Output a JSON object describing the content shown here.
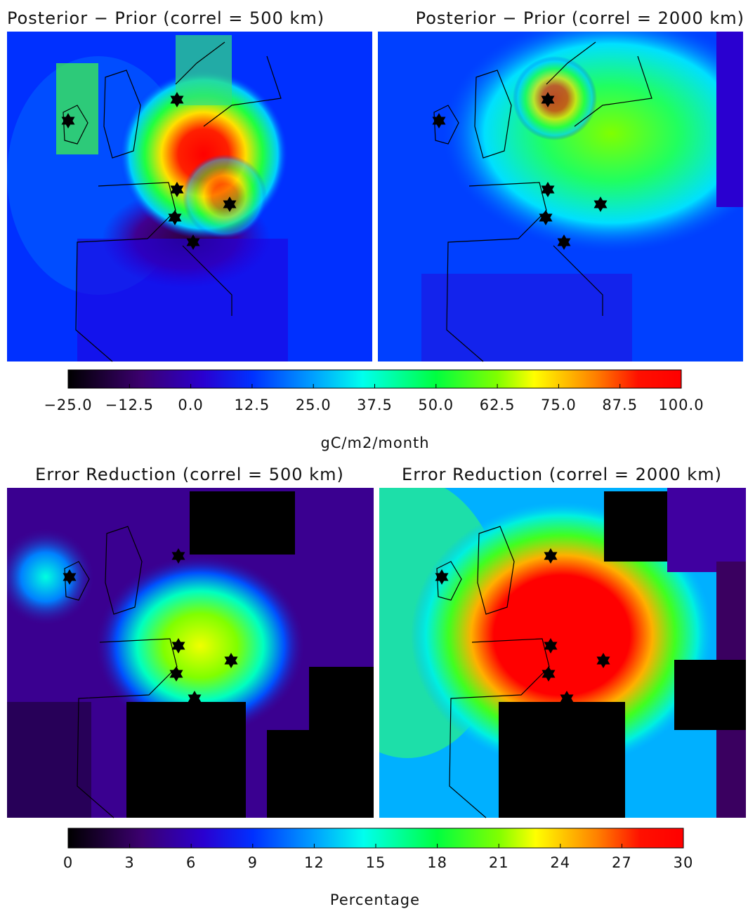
{
  "panels": [
    {
      "title": "Posterior − Prior (correl = 500 km)"
    },
    {
      "title": "Posterior − Prior (correl = 2000 km)"
    },
    {
      "title": "Error Reduction (correl = 500 km)"
    },
    {
      "title": "Error Reduction (correl = 2000 km)"
    }
  ],
  "colorbars": [
    {
      "range": [
        -25,
        100
      ],
      "label": "gC/m2/month",
      "ticks": [
        {
          "value": -25,
          "label": "−25.0"
        },
        {
          "value": -12.5,
          "label": "−12.5"
        },
        {
          "value": 0,
          "label": "0.0"
        },
        12.5,
        {
          "value": 25,
          "label": "25.0"
        },
        37.5,
        {
          "value": 50,
          "label": "50.0"
        },
        62.5,
        {
          "value": 75,
          "label": "75.0"
        },
        87.5,
        {
          "value": 100,
          "label": "100.0"
        }
      ]
    },
    {
      "range": [
        0,
        30
      ],
      "label": "Percentage",
      "ticks": [
        0,
        3,
        6,
        9,
        12,
        15,
        18,
        21,
        24,
        27,
        30
      ]
    }
  ]
}
